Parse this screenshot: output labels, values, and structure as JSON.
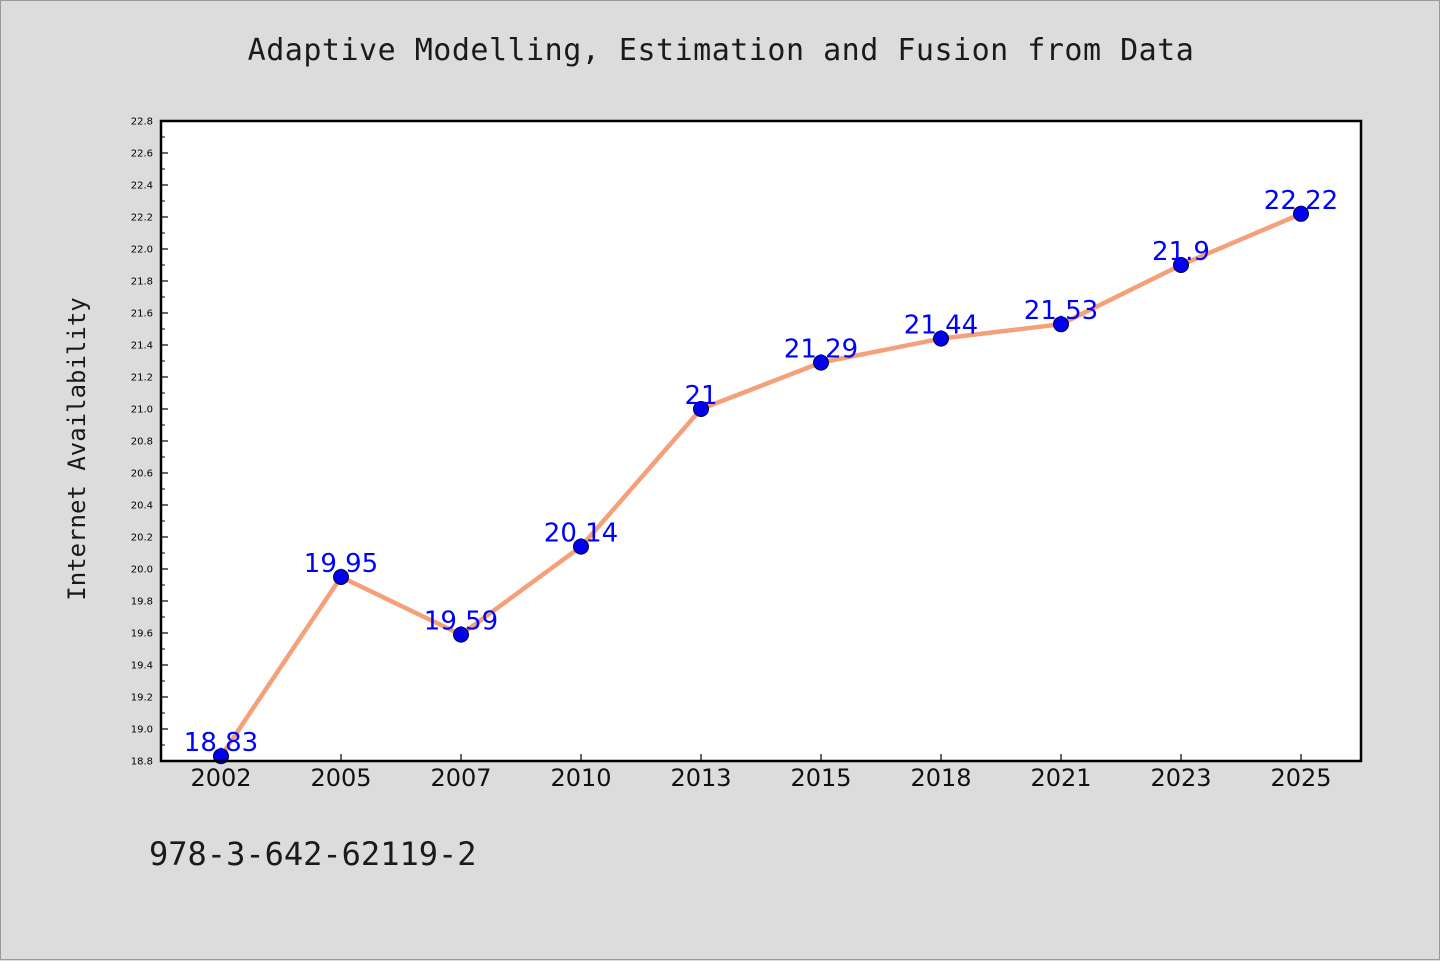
{
  "footer": {
    "isbn": "978-3-642-62119-2"
  },
  "chart_data": {
    "type": "line",
    "title": "Adaptive Modelling, Estimation and Fusion from Data",
    "xlabel": "",
    "ylabel": "Internet Availability",
    "categories": [
      "2002",
      "2005",
      "2007",
      "2010",
      "2013",
      "2015",
      "2018",
      "2021",
      "2023",
      "2025"
    ],
    "series": [
      {
        "values": [
          18.83,
          19.95,
          19.59,
          20.14,
          21,
          21.29,
          21.44,
          21.53,
          21.9,
          22.22
        ],
        "data_labels": [
          "18.83",
          "19.95",
          "19.59",
          "20.14",
          "21",
          "21.29",
          "21.44",
          "21.53",
          "21.9",
          "22.22"
        ]
      }
    ],
    "ylim": [
      18.8,
      22.8
    ],
    "yticks": [
      "18.8",
      "19.0",
      "19.2",
      "19.4",
      "19.6",
      "19.8",
      "20.0",
      "20.2",
      "20.4",
      "20.6",
      "20.8",
      "21.0",
      "21.2",
      "21.4",
      "21.6",
      "21.8",
      "22.0",
      "22.2",
      "22.4",
      "22.6",
      "22.8"
    ],
    "grid": false,
    "legend": "none",
    "colors": {
      "line": "#f4a07a",
      "marker": "#0000ee",
      "data_label": "#0000ff",
      "plot_background": "#ffffff",
      "figure_background": "#dcdcdc"
    }
  }
}
